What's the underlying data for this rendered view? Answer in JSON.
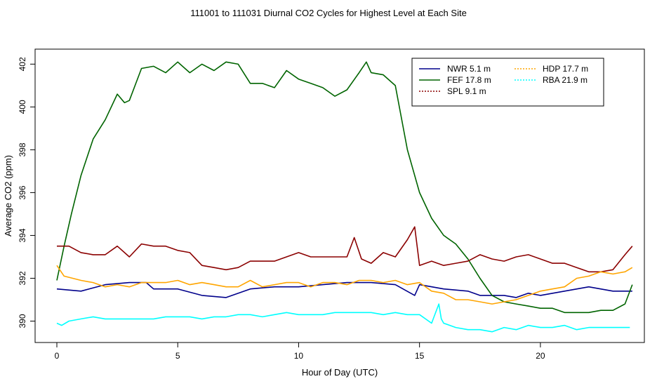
{
  "chart_data": {
    "type": "line",
    "title": "111001  to  111031 Diurnal CO2 Cycles for Highest Level at Each Site",
    "xlabel": "Hour of Day (UTC)",
    "ylabel": "Average CO2 (ppm)",
    "xlim": [
      -0.9,
      24.3
    ],
    "ylim": [
      389.0,
      402.7
    ],
    "xticks": [
      0,
      5,
      10,
      15,
      20
    ],
    "yticks": [
      390,
      392,
      394,
      396,
      398,
      400,
      402
    ],
    "legend_position": "top-right",
    "series": [
      {
        "name": "NWR  5.1 m",
        "color": "#00008b",
        "x": [
          0,
          1,
          2,
          3,
          3.7,
          4,
          5,
          6,
          7,
          8,
          9,
          10,
          11,
          12,
          13,
          14,
          14.8,
          15,
          16,
          17,
          17.5,
          18,
          18.5,
          19,
          19.5,
          20,
          21,
          22,
          23,
          23.8
        ],
        "values": [
          391.5,
          391.4,
          391.7,
          391.8,
          391.8,
          391.5,
          391.5,
          391.2,
          391.1,
          391.5,
          391.6,
          391.6,
          391.7,
          391.8,
          391.8,
          391.7,
          391.2,
          391.7,
          391.5,
          391.4,
          391.2,
          391.2,
          391.2,
          391.1,
          391.3,
          391.2,
          391.4,
          391.6,
          391.4,
          391.4
        ]
      },
      {
        "name": "FEF  17.8 m",
        "color": "#006400",
        "x": [
          0,
          0.3,
          0.6,
          1,
          1.5,
          2,
          2.5,
          2.8,
          3,
          3.5,
          4,
          4.5,
          5,
          5.5,
          6,
          6.5,
          7,
          7.5,
          8,
          8.5,
          9,
          9.5,
          10,
          10.5,
          11,
          11.5,
          12,
          12.5,
          12.8,
          13,
          13.5,
          14,
          14.5,
          15,
          15.5,
          16,
          16.5,
          17,
          17.5,
          18,
          18.5,
          19,
          19.5,
          20,
          20.5,
          21,
          21.5,
          22,
          22.5,
          23,
          23.5,
          23.8
        ],
        "values": [
          391.9,
          393.5,
          395.0,
          396.8,
          398.5,
          399.4,
          400.6,
          400.2,
          400.3,
          401.8,
          401.9,
          401.6,
          402.1,
          401.6,
          402.0,
          401.7,
          402.1,
          402.0,
          401.1,
          401.1,
          400.9,
          401.7,
          401.3,
          401.1,
          400.9,
          400.5,
          400.8,
          401.6,
          402.1,
          401.6,
          401.5,
          401.0,
          398.0,
          396.0,
          394.8,
          394.0,
          393.6,
          392.9,
          392.0,
          391.2,
          390.9,
          390.8,
          390.7,
          390.6,
          390.6,
          390.4,
          390.4,
          390.4,
          390.5,
          390.5,
          390.8,
          391.7
        ]
      },
      {
        "name": "SPL  9.1 m",
        "color": "#8b0000",
        "x": [
          0,
          0.5,
          1,
          1.5,
          2,
          2.5,
          3,
          3.5,
          4,
          4.5,
          5,
          5.5,
          6,
          6.5,
          7,
          7.5,
          8,
          8.5,
          9,
          9.5,
          10,
          10.5,
          11,
          11.5,
          12,
          12.3,
          12.6,
          13,
          13.5,
          14,
          14.5,
          14.8,
          15,
          15.5,
          16,
          16.5,
          17,
          17.5,
          18,
          18.5,
          19,
          19.5,
          20,
          20.5,
          21,
          21.5,
          22,
          22.5,
          23,
          23.5,
          23.8
        ],
        "values": [
          393.5,
          393.5,
          393.2,
          393.1,
          393.1,
          393.5,
          393.0,
          393.6,
          393.5,
          393.5,
          393.3,
          393.2,
          392.6,
          392.5,
          392.4,
          392.5,
          392.8,
          392.8,
          392.8,
          393.0,
          393.2,
          393.0,
          393.0,
          393.0,
          393.0,
          393.9,
          392.9,
          392.7,
          393.2,
          393.0,
          393.8,
          394.4,
          392.6,
          392.8,
          392.6,
          392.7,
          392.8,
          393.1,
          392.9,
          392.8,
          393.0,
          393.1,
          392.9,
          392.7,
          392.7,
          392.5,
          392.3,
          392.3,
          392.4,
          393.1,
          393.5
        ]
      },
      {
        "name": "HDP  17.7 m",
        "color": "#ffa500",
        "x": [
          0,
          0.3,
          1,
          1.5,
          2,
          2.5,
          3,
          3.5,
          4,
          4.5,
          5,
          5.5,
          6,
          6.5,
          7,
          7.5,
          8,
          8.5,
          9,
          9.5,
          10,
          10.5,
          11,
          11.5,
          12,
          12.5,
          13,
          13.5,
          14,
          14.5,
          15,
          15.5,
          16,
          16.5,
          17,
          17.5,
          18,
          18.5,
          19,
          19.5,
          20,
          20.5,
          21,
          21.5,
          22,
          22.5,
          23,
          23.5,
          23.8
        ],
        "values": [
          392.6,
          392.1,
          391.9,
          391.8,
          391.6,
          391.7,
          391.6,
          391.8,
          391.8,
          391.8,
          391.9,
          391.7,
          391.8,
          391.7,
          391.6,
          391.6,
          391.9,
          391.6,
          391.7,
          391.8,
          391.8,
          391.6,
          391.8,
          391.8,
          391.7,
          391.9,
          391.9,
          391.8,
          391.9,
          391.7,
          391.8,
          391.4,
          391.3,
          391.0,
          391.0,
          390.9,
          390.8,
          390.9,
          391.0,
          391.2,
          391.4,
          391.5,
          391.6,
          392.0,
          392.1,
          392.3,
          392.2,
          392.3,
          392.5
        ]
      },
      {
        "name": "RBA  21.9 m",
        "color": "#00ffff",
        "x": [
          0,
          0.2,
          0.5,
          1,
          1.5,
          2,
          2.5,
          3,
          3.5,
          4,
          4.5,
          5,
          5.5,
          6,
          6.5,
          7,
          7.5,
          8,
          8.5,
          9,
          9.5,
          10,
          10.5,
          11,
          11.5,
          12,
          12.5,
          13,
          13.5,
          14,
          14.5,
          15,
          15.5,
          15.8,
          15.9,
          16,
          16.5,
          17,
          17.5,
          18,
          18.5,
          19,
          19.5,
          20,
          20.5,
          21,
          21.5,
          22,
          22.5,
          23,
          23.5,
          23.7
        ],
        "values": [
          389.9,
          389.8,
          390.0,
          390.1,
          390.2,
          390.1,
          390.1,
          390.1,
          390.1,
          390.1,
          390.2,
          390.2,
          390.2,
          390.1,
          390.2,
          390.2,
          390.3,
          390.3,
          390.2,
          390.3,
          390.4,
          390.3,
          390.3,
          390.3,
          390.4,
          390.4,
          390.4,
          390.4,
          390.3,
          390.4,
          390.3,
          390.3,
          389.9,
          390.8,
          390.1,
          389.9,
          389.7,
          389.6,
          389.6,
          389.5,
          389.7,
          389.6,
          389.8,
          389.7,
          389.7,
          389.8,
          389.6,
          389.7,
          389.7,
          389.7,
          389.7,
          389.7
        ]
      }
    ]
  }
}
